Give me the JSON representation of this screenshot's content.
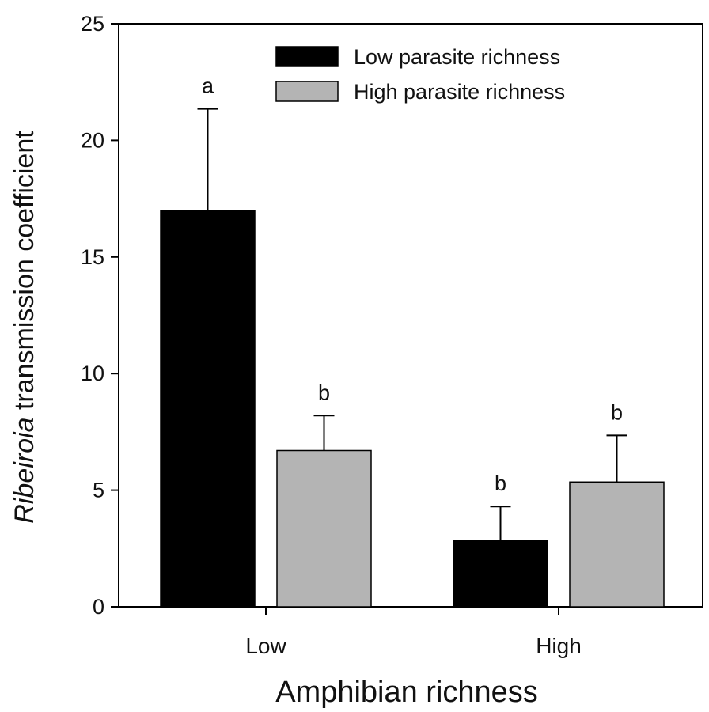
{
  "chart_data": {
    "type": "bar",
    "title": "",
    "xlabel": "Amphibian richness",
    "ylabel_italic": "Ribeiroia",
    "ylabel_rest": " transmission coefficient",
    "ylim": [
      0,
      25
    ],
    "yticks": [
      0,
      5,
      10,
      15,
      20,
      25
    ],
    "categories": [
      "Low",
      "High"
    ],
    "legend_position": "top-right",
    "series": [
      {
        "name": "Low parasite richness",
        "color": "#000000",
        "values": [
          17.0,
          2.85
        ],
        "errors": [
          4.35,
          1.45
        ],
        "sig_letters": [
          "a",
          "b"
        ]
      },
      {
        "name": "High parasite richness",
        "color": "#b4b4b4",
        "values": [
          6.7,
          5.35
        ],
        "errors": [
          1.5,
          2.0
        ],
        "sig_letters": [
          "b",
          "b"
        ]
      }
    ]
  }
}
